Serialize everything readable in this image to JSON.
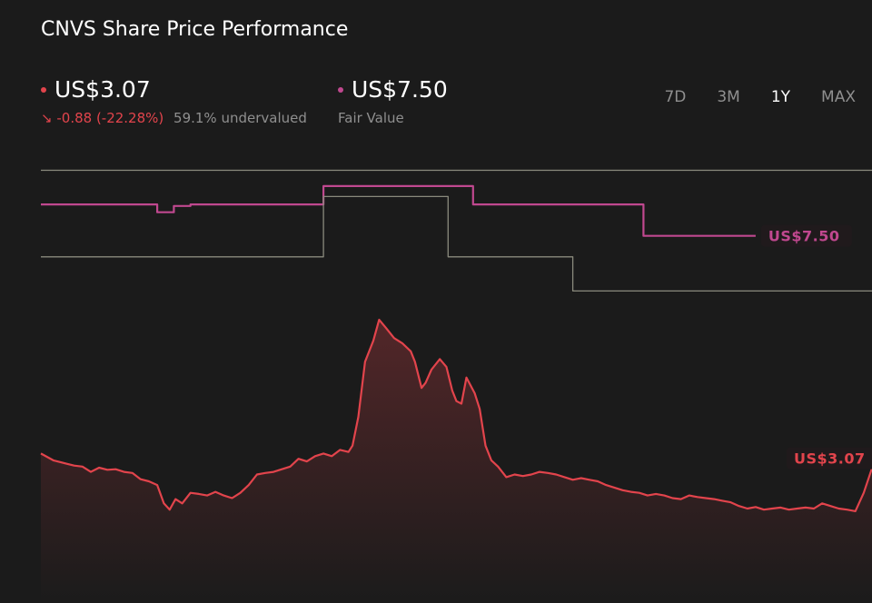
{
  "header": {
    "title": "CNVS Share Price Performance"
  },
  "price": {
    "value": "US$3.07",
    "change": "-0.88 (-22.28%)",
    "change_arrow": "↘",
    "valuation": "59.1% undervalued",
    "color": "#e2444c"
  },
  "fair_value": {
    "value": "US$7.50",
    "label": "Fair Value",
    "color": "#c0488f"
  },
  "tabs": [
    {
      "label": "7D",
      "active": false
    },
    {
      "label": "3M",
      "active": false
    },
    {
      "label": "1Y",
      "active": true
    },
    {
      "label": "MAX",
      "active": false
    }
  ],
  "chart_data": {
    "type": "line",
    "x_range": [
      0,
      100
    ],
    "y_range": [
      0.5,
      9.4
    ],
    "series": [
      {
        "color": "#e2444c",
        "end_label": "US$3.07",
        "points": [
          [
            0,
            3.35
          ],
          [
            1.5,
            3.22
          ],
          [
            3,
            3.16
          ],
          [
            4,
            3.12
          ],
          [
            5,
            3.1
          ],
          [
            6,
            3.0
          ],
          [
            7,
            3.08
          ],
          [
            8,
            3.04
          ],
          [
            9,
            3.05
          ],
          [
            10,
            3.0
          ],
          [
            11,
            2.98
          ],
          [
            12,
            2.86
          ],
          [
            13,
            2.82
          ],
          [
            14,
            2.75
          ],
          [
            14.8,
            2.4
          ],
          [
            15.5,
            2.28
          ],
          [
            16.2,
            2.48
          ],
          [
            17,
            2.4
          ],
          [
            18,
            2.6
          ],
          [
            19,
            2.58
          ],
          [
            20,
            2.55
          ],
          [
            21,
            2.62
          ],
          [
            22,
            2.55
          ],
          [
            23,
            2.5
          ],
          [
            24,
            2.6
          ],
          [
            25,
            2.75
          ],
          [
            26,
            2.95
          ],
          [
            27,
            2.98
          ],
          [
            28,
            3.0
          ],
          [
            29,
            3.05
          ],
          [
            30,
            3.1
          ],
          [
            31,
            3.25
          ],
          [
            32,
            3.2
          ],
          [
            33,
            3.3
          ],
          [
            34,
            3.35
          ],
          [
            35,
            3.3
          ],
          [
            36,
            3.42
          ],
          [
            37,
            3.38
          ],
          [
            37.5,
            3.5
          ],
          [
            38.2,
            4.05
          ],
          [
            39,
            5.1
          ],
          [
            40,
            5.5
          ],
          [
            40.7,
            5.9
          ],
          [
            41.5,
            5.75
          ],
          [
            42.5,
            5.55
          ],
          [
            43.5,
            5.45
          ],
          [
            44.5,
            5.3
          ],
          [
            45,
            5.1
          ],
          [
            45.8,
            4.6
          ],
          [
            46.3,
            4.7
          ],
          [
            47,
            4.95
          ],
          [
            48,
            5.15
          ],
          [
            48.8,
            5.0
          ],
          [
            49.5,
            4.55
          ],
          [
            50,
            4.35
          ],
          [
            50.6,
            4.3
          ],
          [
            51.2,
            4.8
          ],
          [
            52.2,
            4.5
          ],
          [
            52.8,
            4.2
          ],
          [
            53.5,
            3.5
          ],
          [
            54.2,
            3.22
          ],
          [
            55,
            3.1
          ],
          [
            56,
            2.9
          ],
          [
            57,
            2.95
          ],
          [
            58,
            2.92
          ],
          [
            59,
            2.95
          ],
          [
            60,
            3.0
          ],
          [
            61,
            2.98
          ],
          [
            62,
            2.95
          ],
          [
            63,
            2.9
          ],
          [
            64,
            2.85
          ],
          [
            65,
            2.88
          ],
          [
            66,
            2.85
          ],
          [
            67,
            2.82
          ],
          [
            68,
            2.75
          ],
          [
            69,
            2.7
          ],
          [
            70,
            2.65
          ],
          [
            71,
            2.62
          ],
          [
            72,
            2.6
          ],
          [
            73,
            2.55
          ],
          [
            74,
            2.58
          ],
          [
            75,
            2.55
          ],
          [
            76,
            2.5
          ],
          [
            77,
            2.48
          ],
          [
            78,
            2.55
          ],
          [
            79,
            2.52
          ],
          [
            80,
            2.5
          ],
          [
            81,
            2.48
          ],
          [
            82,
            2.45
          ],
          [
            83,
            2.42
          ],
          [
            84,
            2.35
          ],
          [
            85,
            2.3
          ],
          [
            86,
            2.33
          ],
          [
            87,
            2.28
          ],
          [
            88,
            2.3
          ],
          [
            89,
            2.32
          ],
          [
            90,
            2.28
          ],
          [
            91,
            2.3
          ],
          [
            92,
            2.32
          ],
          [
            93,
            2.3
          ],
          [
            94,
            2.4
          ],
          [
            95,
            2.35
          ],
          [
            96,
            2.3
          ],
          [
            97,
            2.28
          ],
          [
            98,
            2.25
          ],
          [
            99,
            2.6
          ],
          [
            100,
            3.07
          ]
        ]
      },
      {
        "color": "#c0488f",
        "end_label": "US$7.50",
        "points": [
          [
            0,
            8.1
          ],
          [
            14,
            8.1
          ],
          [
            14,
            7.95
          ],
          [
            16,
            7.95
          ],
          [
            16,
            8.07
          ],
          [
            18,
            8.07
          ],
          [
            18,
            8.1
          ],
          [
            34,
            8.1
          ],
          [
            34,
            8.45
          ],
          [
            52,
            8.45
          ],
          [
            52,
            8.1
          ],
          [
            72.5,
            8.1
          ],
          [
            72.5,
            7.5
          ],
          [
            86,
            7.5
          ]
        ]
      },
      {
        "color": "#8a8a7d",
        "points": [
          [
            0,
            7.1
          ],
          [
            34,
            7.1
          ],
          [
            34,
            8.25
          ],
          [
            49,
            8.25
          ],
          [
            49,
            7.1
          ],
          [
            64,
            7.1
          ],
          [
            64,
            6.45
          ],
          [
            100,
            6.45
          ]
        ]
      },
      {
        "color": "#8a8a7d",
        "points": [
          [
            0,
            8.75
          ],
          [
            100,
            8.75
          ]
        ]
      }
    ]
  }
}
